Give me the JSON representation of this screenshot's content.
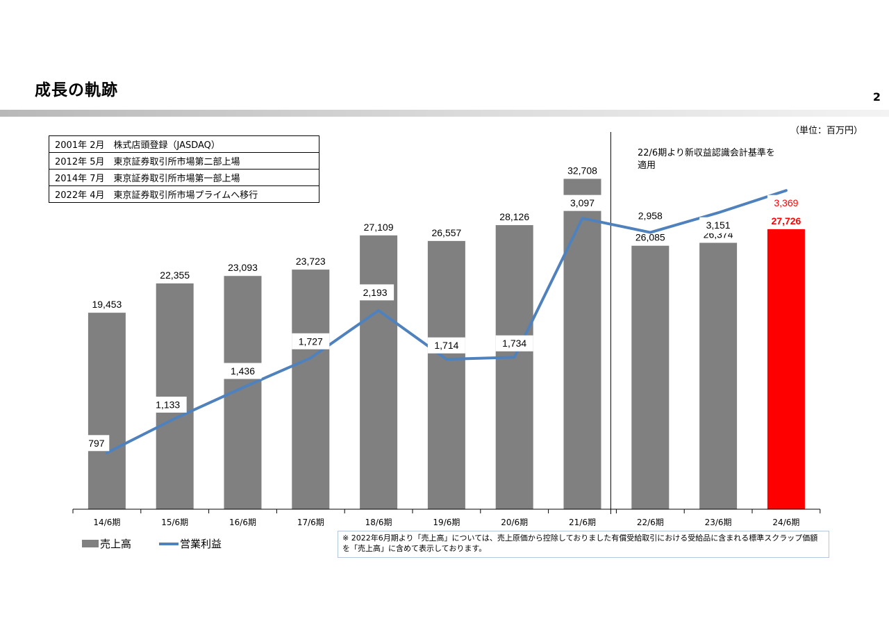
{
  "page": {
    "title": "成長の軌跡",
    "page_number": "2",
    "unit": "（単位：百万円）"
  },
  "history": [
    {
      "year": "2001年",
      "month": "2月",
      "event": "株式店頭登録（JASDAQ）"
    },
    {
      "year": "2012年",
      "month": "5月",
      "event": "東京証券取引所市場第二部上場"
    },
    {
      "year": "2014年",
      "month": "7月",
      "event": "東京証券取引所市場第一部上場"
    },
    {
      "year": "2022年",
      "month": "4月",
      "event": "東京証券取引所市場プライムへ移行"
    }
  ],
  "note_top": "22/6期より新収益認識会計基準を適用",
  "footnote": "※ 2022年6月期より「売上高」については、売上原価から控除しておりました有償受給取引における受給品に含まれる標準スクラップ価額を「売上高」に含めて表示しております。",
  "legend": {
    "bar": "売上高",
    "line": "営業利益"
  },
  "colors": {
    "bar": "#808080",
    "bar_highlight": "#ff0000",
    "line": "#4f81bd",
    "highlight_text": "#ff0000"
  },
  "chart_data": {
    "type": "bar",
    "categories": [
      "14/6期",
      "15/6期",
      "16/6期",
      "17/6期",
      "18/6期",
      "19/6期",
      "20/6期",
      "21/6期",
      "22/6期",
      "23/6期",
      "24/6期"
    ],
    "series": [
      {
        "name": "売上高",
        "type": "bar",
        "values": [
          19453,
          22355,
          23093,
          23723,
          27109,
          26557,
          28126,
          32708,
          26085,
          26374,
          27726
        ],
        "labels": [
          "19,453",
          "22,355",
          "23,093",
          "23,723",
          "27,109",
          "26,557",
          "28,126",
          "32,708",
          "26,085",
          "26,374",
          "27,726"
        ]
      },
      {
        "name": "営業利益",
        "type": "line",
        "values": [
          797,
          1133,
          1436,
          1727,
          2193,
          1714,
          1734,
          3097,
          2958,
          3151,
          3369
        ],
        "labels": [
          "797",
          "1,133",
          "1,436",
          "1,727",
          "2,193",
          "1,714",
          "1,734",
          "3,097",
          "2,958",
          "3,151",
          "3,369"
        ]
      }
    ],
    "highlight_index": 10,
    "divider_after_index": 7,
    "legend_position": "bottom-left",
    "grid": false
  }
}
